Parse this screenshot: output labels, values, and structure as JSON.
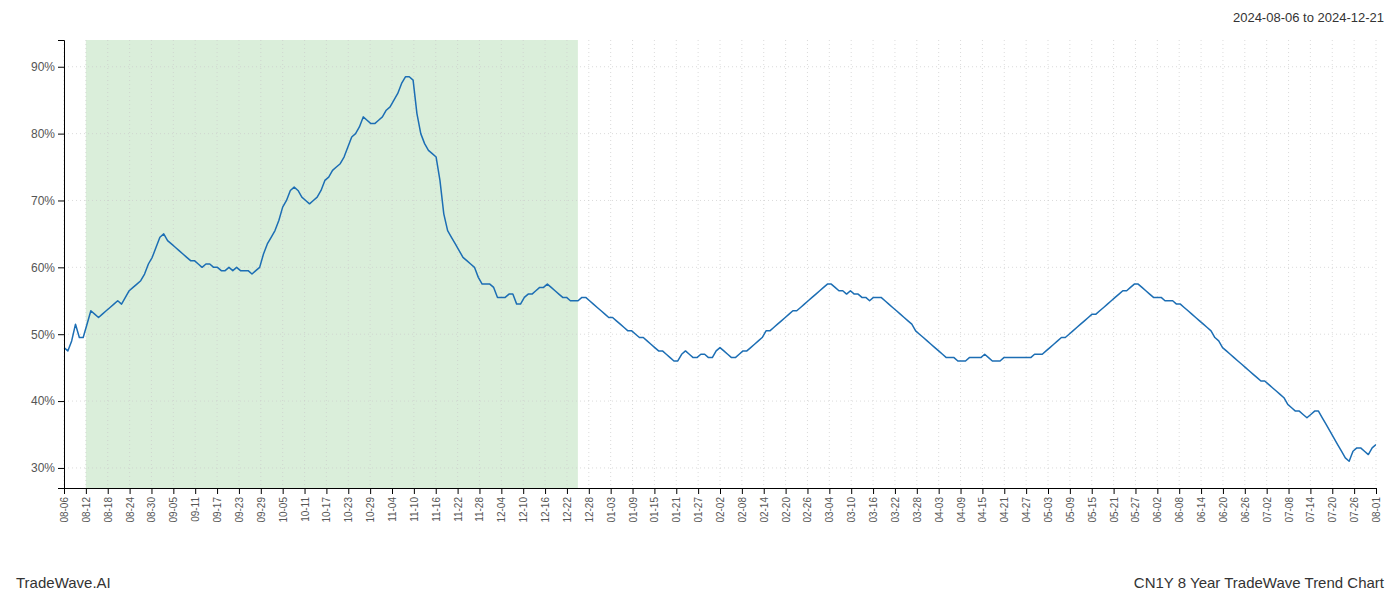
{
  "chart_data": {
    "type": "line",
    "title": "CN1Y 8 Year TradeWave Trend Chart",
    "subtitle": "2024-08-06 to 2024-12-21",
    "annotations": [
      "TradeWave.AI"
    ],
    "color": "#1c6eb4",
    "grid": true,
    "xlim": [
      0,
      60
    ],
    "xticks": [
      {
        "value": 0,
        "label": "08-06"
      },
      {
        "value": 1,
        "label": "08-12"
      },
      {
        "value": 2,
        "label": "08-18"
      },
      {
        "value": 3,
        "label": "08-24"
      },
      {
        "value": 4,
        "label": "08-30"
      },
      {
        "value": 5,
        "label": "09-05"
      },
      {
        "value": 6,
        "label": "09-11"
      },
      {
        "value": 7,
        "label": "09-17"
      },
      {
        "value": 8,
        "label": "09-23"
      },
      {
        "value": 9,
        "label": "09-29"
      },
      {
        "value": 10,
        "label": "10-05"
      },
      {
        "value": 11,
        "label": "10-11"
      },
      {
        "value": 12,
        "label": "10-17"
      },
      {
        "value": 13,
        "label": "10-23"
      },
      {
        "value": 14,
        "label": "10-29"
      },
      {
        "value": 15,
        "label": "11-04"
      },
      {
        "value": 16,
        "label": "11-10"
      },
      {
        "value": 17,
        "label": "11-16"
      },
      {
        "value": 18,
        "label": "11-22"
      },
      {
        "value": 19,
        "label": "11-28"
      },
      {
        "value": 20,
        "label": "12-04"
      },
      {
        "value": 21,
        "label": "12-10"
      },
      {
        "value": 22,
        "label": "12-16"
      },
      {
        "value": 23,
        "label": "12-22"
      },
      {
        "value": 24,
        "label": "12-28"
      },
      {
        "value": 25,
        "label": "01-03"
      },
      {
        "value": 26,
        "label": "01-09"
      },
      {
        "value": 27,
        "label": "01-15"
      },
      {
        "value": 28,
        "label": "01-21"
      },
      {
        "value": 29,
        "label": "01-27"
      },
      {
        "value": 30,
        "label": "02-02"
      },
      {
        "value": 31,
        "label": "02-08"
      },
      {
        "value": 32,
        "label": "02-14"
      },
      {
        "value": 33,
        "label": "02-20"
      },
      {
        "value": 34,
        "label": "02-26"
      },
      {
        "value": 35,
        "label": "03-04"
      },
      {
        "value": 36,
        "label": "03-10"
      },
      {
        "value": 37,
        "label": "03-16"
      },
      {
        "value": 38,
        "label": "03-22"
      },
      {
        "value": 39,
        "label": "03-28"
      },
      {
        "value": 40,
        "label": "04-03"
      },
      {
        "value": 41,
        "label": "04-09"
      },
      {
        "value": 42,
        "label": "04-15"
      },
      {
        "value": 43,
        "label": "04-21"
      },
      {
        "value": 44,
        "label": "04-27"
      },
      {
        "value": 45,
        "label": "05-03"
      },
      {
        "value": 46,
        "label": "05-09"
      },
      {
        "value": 47,
        "label": "05-15"
      },
      {
        "value": 48,
        "label": "05-21"
      },
      {
        "value": 49,
        "label": "05-27"
      },
      {
        "value": 50,
        "label": "06-02"
      },
      {
        "value": 51,
        "label": "06-08"
      },
      {
        "value": 52,
        "label": "06-14"
      },
      {
        "value": 53,
        "label": "06-20"
      },
      {
        "value": 54,
        "label": "06-26"
      },
      {
        "value": 55,
        "label": "07-02"
      },
      {
        "value": 56,
        "label": "07-08"
      },
      {
        "value": 57,
        "label": "07-14"
      },
      {
        "value": 58,
        "label": "07-20"
      },
      {
        "value": 59,
        "label": "07-26"
      },
      {
        "value": 60,
        "label": "08-01"
      }
    ],
    "ylim": [
      27,
      94
    ],
    "yticks": [
      {
        "value": 30,
        "label": "30%"
      },
      {
        "value": 40,
        "label": "40%"
      },
      {
        "value": 50,
        "label": "50%"
      },
      {
        "value": 60,
        "label": "60%"
      },
      {
        "value": 70,
        "label": "70%"
      },
      {
        "value": 80,
        "label": "80%"
      },
      {
        "value": 90,
        "label": "90%"
      }
    ],
    "shaded_region": {
      "x": [
        1,
        23.5
      ],
      "color": "#daeeda"
    },
    "values": [
      48.0,
      47.5,
      49.0,
      51.5,
      49.5,
      49.5,
      51.5,
      53.5,
      53.0,
      52.5,
      53.0,
      53.5,
      54.0,
      54.5,
      55.0,
      54.5,
      55.5,
      56.5,
      57.0,
      57.5,
      58.0,
      59.0,
      60.5,
      61.5,
      63.0,
      64.5,
      65.0,
      64.0,
      63.5,
      63.0,
      62.5,
      62.0,
      61.5,
      61.0,
      61.0,
      60.5,
      60.0,
      60.5,
      60.5,
      60.0,
      60.0,
      59.5,
      59.5,
      60.0,
      59.5,
      60.0,
      59.5,
      59.5,
      59.5,
      59.0,
      59.5,
      60.0,
      62.0,
      63.5,
      64.5,
      65.5,
      67.0,
      69.0,
      70.0,
      71.5,
      72.0,
      71.5,
      70.5,
      70.0,
      69.5,
      70.0,
      70.5,
      71.5,
      73.0,
      73.5,
      74.5,
      75.0,
      75.5,
      76.5,
      78.0,
      79.5,
      80.0,
      81.0,
      82.5,
      82.0,
      81.5,
      81.5,
      82.0,
      82.5,
      83.5,
      84.0,
      85.0,
      86.0,
      87.5,
      88.5,
      88.5,
      88.0,
      83.0,
      80.0,
      78.5,
      77.5,
      77.0,
      76.5,
      73.0,
      68.0,
      65.5,
      64.5,
      63.5,
      62.5,
      61.5,
      61.0,
      60.5,
      60.0,
      58.5,
      57.5,
      57.5,
      57.5,
      57.0,
      55.5,
      55.5,
      55.5,
      56.0,
      56.0,
      54.5,
      54.5,
      55.5,
      56.0,
      56.0,
      56.5,
      57.0,
      57.0,
      57.5,
      57.0,
      56.5,
      56.0,
      55.5,
      55.5,
      55.0,
      55.0,
      55.0,
      55.5,
      55.5,
      55.0,
      54.5,
      54.0,
      53.5,
      53.0,
      52.5,
      52.5,
      52.0,
      51.5,
      51.0,
      50.5,
      50.5,
      50.0,
      49.5,
      49.5,
      49.0,
      48.5,
      48.0,
      47.5,
      47.5,
      47.0,
      46.5,
      46.0,
      46.0,
      47.0,
      47.5,
      47.0,
      46.5,
      46.5,
      47.0,
      47.0,
      46.5,
      46.5,
      47.5,
      48.0,
      47.5,
      47.0,
      46.5,
      46.5,
      47.0,
      47.5,
      47.5,
      48.0,
      48.5,
      49.0,
      49.5,
      50.5,
      50.5,
      51.0,
      51.5,
      52.0,
      52.5,
      53.0,
      53.5,
      53.5,
      54.0,
      54.5,
      55.0,
      55.5,
      56.0,
      56.5,
      57.0,
      57.5,
      57.5,
      57.0,
      56.5,
      56.5,
      56.0,
      56.5,
      56.0,
      56.0,
      55.5,
      55.5,
      55.0,
      55.5,
      55.5,
      55.5,
      55.0,
      54.5,
      54.0,
      53.5,
      53.0,
      52.5,
      52.0,
      51.5,
      50.5,
      50.0,
      49.5,
      49.0,
      48.5,
      48.0,
      47.5,
      47.0,
      46.5,
      46.5,
      46.5,
      46.0,
      46.0,
      46.0,
      46.5,
      46.5,
      46.5,
      46.5,
      47.0,
      46.5,
      46.0,
      46.0,
      46.0,
      46.5,
      46.5,
      46.5,
      46.5,
      46.5,
      46.5,
      46.5,
      46.5,
      47.0,
      47.0,
      47.0,
      47.5,
      48.0,
      48.5,
      49.0,
      49.5,
      49.5,
      50.0,
      50.5,
      51.0,
      51.5,
      52.0,
      52.5,
      53.0,
      53.0,
      53.5,
      54.0,
      54.5,
      55.0,
      55.5,
      56.0,
      56.5,
      56.5,
      57.0,
      57.5,
      57.5,
      57.0,
      56.5,
      56.0,
      55.5,
      55.5,
      55.5,
      55.0,
      55.0,
      55.0,
      54.5,
      54.5,
      54.0,
      53.5,
      53.0,
      52.5,
      52.0,
      51.5,
      51.0,
      50.5,
      49.5,
      49.0,
      48.0,
      47.5,
      47.0,
      46.5,
      46.0,
      45.5,
      45.0,
      44.5,
      44.0,
      43.5,
      43.0,
      43.0,
      42.5,
      42.0,
      41.5,
      41.0,
      40.5,
      39.5,
      39.0,
      38.5,
      38.5,
      38.0,
      37.5,
      38.0,
      38.5,
      38.5,
      37.5,
      36.5,
      35.5,
      34.5,
      33.5,
      32.5,
      31.5,
      31.0,
      32.5,
      33.0,
      33.0,
      32.5,
      32.0,
      33.0,
      33.5
    ]
  }
}
